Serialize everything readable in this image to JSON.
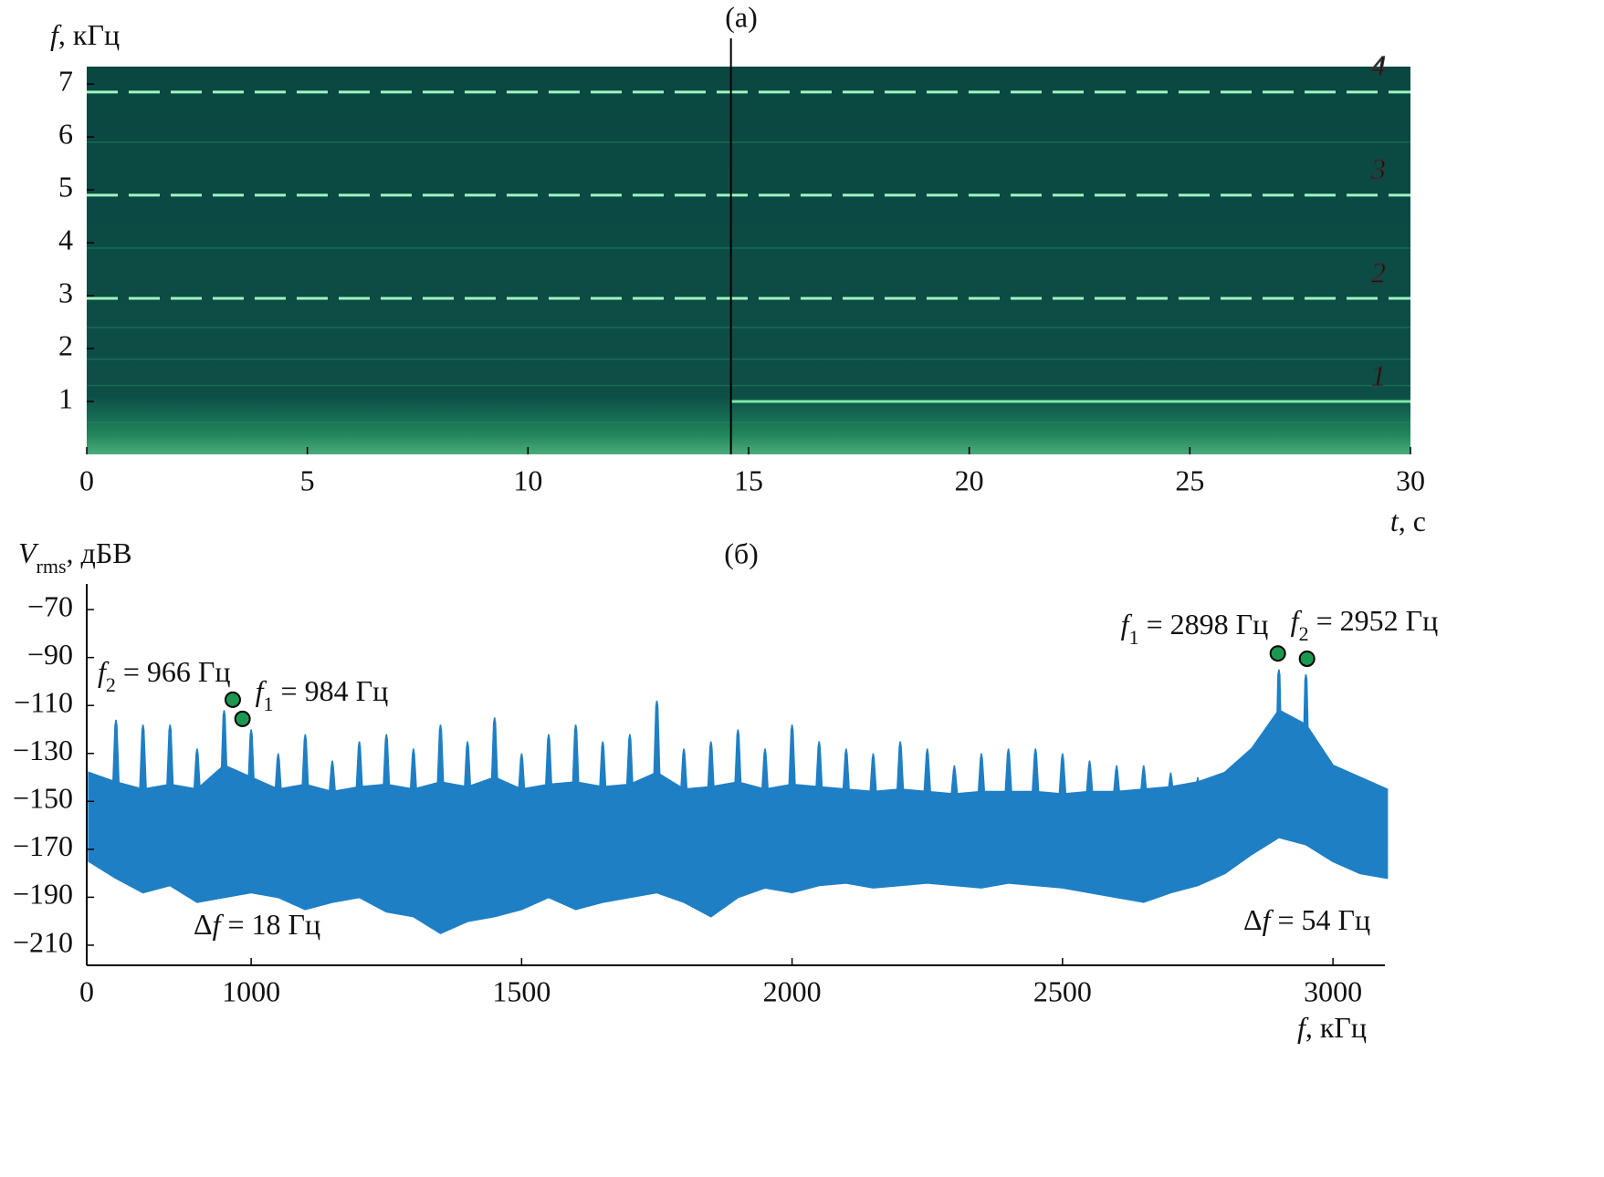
{
  "chart_data": [
    {
      "type": "spectrogram",
      "title": "(a)",
      "x_label": [
        "t",
        ", с"
      ],
      "y_label": [
        "f",
        ", кГц"
      ],
      "xlim": [
        0,
        30
      ],
      "ylim": [
        0,
        7.33
      ],
      "xticks": [
        0,
        5,
        10,
        15,
        20,
        25,
        30
      ],
      "yticks": [
        1,
        2,
        3,
        4,
        5,
        6,
        7
      ],
      "cursor_x": 14.6,
      "background_color": "#0b4a44",
      "series": [
        {
          "name": "1",
          "color": "#7fe8a8",
          "x": [
            14.6,
            30
          ],
          "values": [
            1.0,
            1.0
          ]
        },
        {
          "name": "2",
          "color": "#9ff5c0",
          "x": [
            0,
            30
          ],
          "values": [
            2.95,
            2.95
          ]
        },
        {
          "name": "3",
          "color": "#9ff5c0",
          "x": [
            0,
            30
          ],
          "values": [
            4.9,
            4.9
          ]
        },
        {
          "name": "4",
          "color": "#9ff5c0",
          "x": [
            0,
            30
          ],
          "values": [
            6.85,
            6.85
          ]
        }
      ]
    },
    {
      "type": "spectrum",
      "title": "(б)",
      "x_label": [
        "f",
        ", кГц"
      ],
      "y_label": [
        "V",
        "rms",
        ", дБВ"
      ],
      "x_origin_label": "0",
      "xlim": [
        696,
        3096
      ],
      "ylim": [
        -218.4,
        -59.3
      ],
      "xticks": [
        1000,
        1500,
        2000,
        2500,
        3000
      ],
      "yticks": [
        {
          "value": -70,
          "label": "−70"
        },
        {
          "value": -90,
          "label": "−90"
        },
        {
          "value": -110,
          "label": "−110"
        },
        {
          "value": -130,
          "label": "−130"
        },
        {
          "value": -150,
          "label": "−150"
        },
        {
          "value": -170,
          "label": "−170"
        },
        {
          "value": -190,
          "label": "−190"
        },
        {
          "value": -210,
          "label": "−210"
        }
      ],
      "color": "#1f7fc4",
      "band": {
        "x": [
          700,
          750,
          800,
          850,
          900,
          950,
          1000,
          1050,
          1100,
          1150,
          1200,
          1250,
          1300,
          1350,
          1400,
          1450,
          1500,
          1550,
          1600,
          1650,
          1700,
          1750,
          1800,
          1850,
          1900,
          1950,
          2000,
          2050,
          2100,
          2150,
          2200,
          2250,
          2300,
          2350,
          2400,
          2450,
          2500,
          2550,
          2600,
          2650,
          2700,
          2750,
          2800,
          2850,
          2900,
          2950,
          3000,
          3050,
          3100
        ],
        "upper": [
          -138,
          -142,
          -145,
          -143,
          -145,
          -135,
          -140,
          -145,
          -143,
          -146,
          -144,
          -143,
          -145,
          -142,
          -144,
          -140,
          -145,
          -143,
          -142,
          -144,
          -143,
          -138,
          -145,
          -144,
          -142,
          -145,
          -143,
          -144,
          -145,
          -146,
          -145,
          -146,
          -147,
          -146,
          -146,
          -146,
          -147,
          -146,
          -146,
          -145,
          -144,
          -142,
          -138,
          -128,
          -112,
          -118,
          -135,
          -140,
          -145
        ],
        "lower": [
          -175,
          -182,
          -188,
          -185,
          -192,
          -190,
          -188,
          -190,
          -195,
          -192,
          -190,
          -196,
          -198,
          -205,
          -200,
          -198,
          -195,
          -190,
          -195,
          -192,
          -190,
          -188,
          -192,
          -198,
          -190,
          -186,
          -188,
          -185,
          -184,
          -186,
          -185,
          -184,
          -185,
          -186,
          -184,
          -185,
          -186,
          -188,
          -190,
          -192,
          -188,
          -185,
          -180,
          -172,
          -165,
          -168,
          -175,
          -180,
          -182
        ]
      },
      "spikes": {
        "x": [
          750,
          800,
          850,
          900,
          950,
          1000,
          1050,
          1100,
          1150,
          1200,
          1250,
          1300,
          1350,
          1400,
          1450,
          1500,
          1550,
          1600,
          1650,
          1700,
          1750,
          1800,
          1850,
          1900,
          1950,
          2000,
          2050,
          2100,
          2150,
          2200,
          2250,
          2300,
          2350,
          2400,
          2450,
          2500,
          2550,
          2600,
          2650,
          2700,
          2750,
          2800,
          2850,
          2900,
          2950,
          3000,
          3050
        ],
        "values": [
          -116,
          -118,
          -118,
          -128,
          -112,
          -120,
          -130,
          -122,
          -133,
          -125,
          -122,
          -128,
          -118,
          -125,
          -115,
          -130,
          -122,
          -118,
          -125,
          -122,
          -108,
          -128,
          -125,
          -120,
          -128,
          -118,
          -125,
          -128,
          -130,
          -125,
          -128,
          -135,
          -130,
          -128,
          -128,
          -130,
          -133,
          -135,
          -135,
          -138,
          -140,
          -138,
          -130,
          -95,
          -97,
          -138,
          -140
        ]
      },
      "peaks": [
        {
          "label": [
            "f",
            "2",
            " = 966 Гц"
          ],
          "x": 966,
          "value": -107.6,
          "color": "#1a9850"
        },
        {
          "label": [
            "f",
            "1",
            " = 984 Гц"
          ],
          "x": 984,
          "value": -115.6,
          "color": "#1a9850"
        },
        {
          "label": [
            "f",
            "1",
            " = 2898 Гц"
          ],
          "x": 2898,
          "value": -88.3,
          "color": "#1a9850"
        },
        {
          "label": [
            "f",
            "2",
            " = 2952 Гц"
          ],
          "x": 2952,
          "value": -90.5,
          "color": "#1a9850"
        }
      ],
      "delta_labels": [
        [
          "Δ",
          "f",
          " = 18 Гц"
        ],
        [
          "Δ",
          "f",
          " = 54 Гц"
        ]
      ]
    }
  ]
}
